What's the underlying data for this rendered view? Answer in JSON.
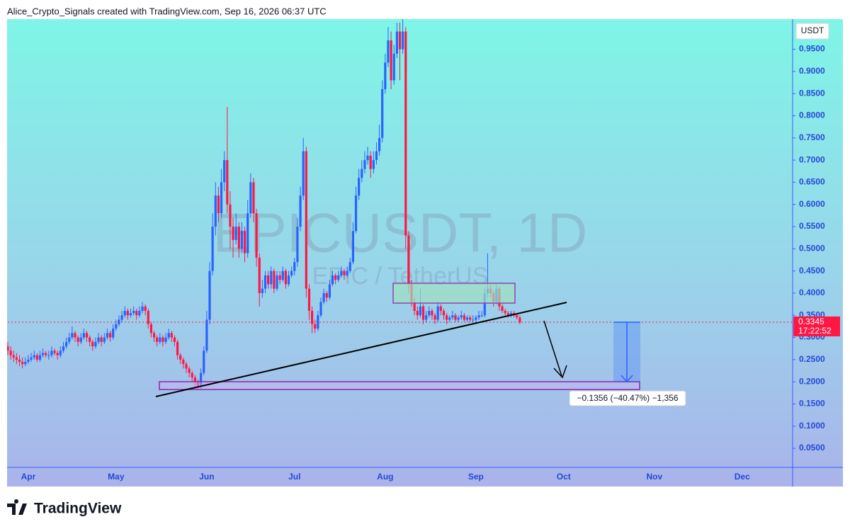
{
  "header": {
    "credit": "Alice_Crypto_Signals created with TradingView.com, Sep 16, 2026 06:37 UTC"
  },
  "footer": {
    "logo": "TradingView"
  },
  "chart_data": {
    "type": "candlestick",
    "watermark": "EPICUSDT, 1D",
    "subtitle": "EPIC / TetherUS",
    "currency": "USDT",
    "up_color": "#2962ff",
    "down_color": "#ff1744",
    "last_price": {
      "value": 0.3345,
      "label": "0.3345"
    },
    "countdown": "17:22:52",
    "measure_label": "−0.1356 (−40.47%) −1,356",
    "ylim": [
      0.007,
      1.018
    ],
    "yticks": [
      {
        "value": 0.05,
        "label": "0.0500"
      },
      {
        "value": 0.1,
        "label": "0.1000"
      },
      {
        "value": 0.15,
        "label": "0.1500"
      },
      {
        "value": 0.2,
        "label": "0.2000"
      },
      {
        "value": 0.25,
        "label": "0.2500"
      },
      {
        "value": 0.3,
        "label": "0.3000"
      },
      {
        "value": 0.35,
        "label": "0.3500"
      },
      {
        "value": 0.4,
        "label": "0.4000"
      },
      {
        "value": 0.45,
        "label": "0.4500"
      },
      {
        "value": 0.5,
        "label": "0.5000"
      },
      {
        "value": 0.55,
        "label": "0.5500"
      },
      {
        "value": 0.6,
        "label": "0.6000"
      },
      {
        "value": 0.65,
        "label": "0.6500"
      },
      {
        "value": 0.7,
        "label": "0.7000"
      },
      {
        "value": 0.75,
        "label": "0.7500"
      },
      {
        "value": 0.8,
        "label": "0.8000"
      },
      {
        "value": 0.85,
        "label": "0.8500"
      },
      {
        "value": 0.9,
        "label": "0.9000"
      },
      {
        "value": 0.95,
        "label": "0.9500"
      }
    ],
    "categories": [
      null,
      null,
      null,
      null,
      null,
      null,
      null,
      "Apr",
      null,
      null,
      null,
      null,
      null,
      null,
      null,
      null,
      null,
      null,
      null,
      null,
      null,
      null,
      null,
      null,
      null,
      null,
      null,
      null,
      null,
      null,
      null,
      null,
      null,
      null,
      null,
      null,
      null,
      "May",
      null,
      null,
      null,
      null,
      null,
      null,
      null,
      null,
      null,
      null,
      null,
      null,
      null,
      null,
      null,
      null,
      null,
      null,
      null,
      null,
      null,
      null,
      null,
      null,
      null,
      null,
      null,
      null,
      null,
      null,
      "Jun",
      null,
      null,
      null,
      null,
      null,
      null,
      null,
      null,
      null,
      null,
      null,
      null,
      null,
      null,
      null,
      null,
      null,
      null,
      null,
      null,
      null,
      null,
      null,
      null,
      null,
      null,
      null,
      null,
      null,
      "Jul",
      null,
      null,
      null,
      null,
      null,
      null,
      null,
      null,
      null,
      null,
      null,
      null,
      null,
      null,
      null,
      null,
      null,
      null,
      null,
      null,
      null,
      null,
      null,
      null,
      null,
      null,
      null,
      null,
      null,
      null,
      "Aug",
      null,
      null,
      null,
      null,
      null,
      null,
      null,
      null,
      null,
      null,
      null,
      null,
      null,
      null,
      null,
      null,
      null,
      null,
      null,
      null,
      null,
      null,
      null,
      null,
      null,
      null,
      null,
      null,
      null,
      null,
      "Sep",
      null,
      null,
      null,
      null,
      null,
      null,
      null,
      null,
      null,
      null,
      null,
      null,
      null,
      null,
      null,
      null,
      null,
      null,
      null,
      null,
      null,
      null,
      null,
      null,
      null,
      null,
      null,
      null,
      null,
      "Oct",
      null,
      null,
      null,
      null,
      null,
      null,
      null,
      null,
      null,
      null,
      null,
      null,
      null,
      null,
      null,
      null,
      null,
      null,
      null,
      null,
      null,
      null,
      null,
      null,
      null,
      null,
      null,
      null,
      null,
      null,
      "Nov",
      null,
      null,
      null,
      null,
      null,
      null,
      null,
      null,
      null,
      null,
      null,
      null,
      null,
      null,
      null,
      null,
      null,
      null,
      null,
      null,
      null,
      null,
      null,
      null,
      null,
      null,
      null,
      null,
      null,
      "Dec",
      null,
      null,
      null,
      null,
      null,
      null,
      null,
      null,
      null,
      null,
      null,
      null,
      null,
      null,
      null,
      null,
      null
    ],
    "ohlc": [
      [
        0.28,
        0.29,
        0.26,
        0.27
      ],
      [
        0.27,
        0.28,
        0.25,
        0.26
      ],
      [
        0.26,
        0.27,
        0.245,
        0.255
      ],
      [
        0.255,
        0.265,
        0.24,
        0.25
      ],
      [
        0.25,
        0.26,
        0.235,
        0.245
      ],
      [
        0.245,
        0.255,
        0.23,
        0.24
      ],
      [
        0.24,
        0.255,
        0.235,
        0.245
      ],
      [
        0.245,
        0.26,
        0.24,
        0.25
      ],
      [
        0.25,
        0.265,
        0.245,
        0.255
      ],
      [
        0.255,
        0.27,
        0.25,
        0.26
      ],
      [
        0.26,
        0.265,
        0.245,
        0.25
      ],
      [
        0.25,
        0.27,
        0.245,
        0.26
      ],
      [
        0.26,
        0.275,
        0.255,
        0.265
      ],
      [
        0.265,
        0.27,
        0.255,
        0.26
      ],
      [
        0.26,
        0.27,
        0.25,
        0.26
      ],
      [
        0.26,
        0.28,
        0.255,
        0.27
      ],
      [
        0.27,
        0.275,
        0.26,
        0.265
      ],
      [
        0.265,
        0.27,
        0.25,
        0.26
      ],
      [
        0.26,
        0.28,
        0.255,
        0.27
      ],
      [
        0.27,
        0.29,
        0.265,
        0.28
      ],
      [
        0.28,
        0.3,
        0.275,
        0.29
      ],
      [
        0.29,
        0.31,
        0.285,
        0.3
      ],
      [
        0.3,
        0.325,
        0.295,
        0.31
      ],
      [
        0.31,
        0.315,
        0.29,
        0.3
      ],
      [
        0.3,
        0.305,
        0.28,
        0.29
      ],
      [
        0.29,
        0.31,
        0.285,
        0.3
      ],
      [
        0.3,
        0.32,
        0.295,
        0.31
      ],
      [
        0.31,
        0.315,
        0.29,
        0.3
      ],
      [
        0.3,
        0.305,
        0.28,
        0.29
      ],
      [
        0.29,
        0.295,
        0.27,
        0.28
      ],
      [
        0.28,
        0.3,
        0.275,
        0.29
      ],
      [
        0.29,
        0.31,
        0.285,
        0.3
      ],
      [
        0.3,
        0.305,
        0.28,
        0.29
      ],
      [
        0.29,
        0.31,
        0.285,
        0.3
      ],
      [
        0.3,
        0.32,
        0.295,
        0.31
      ],
      [
        0.31,
        0.315,
        0.29,
        0.3
      ],
      [
        0.3,
        0.33,
        0.295,
        0.32
      ],
      [
        0.32,
        0.34,
        0.315,
        0.33
      ],
      [
        0.33,
        0.35,
        0.325,
        0.34
      ],
      [
        0.34,
        0.36,
        0.335,
        0.35
      ],
      [
        0.35,
        0.37,
        0.345,
        0.36
      ],
      [
        0.36,
        0.365,
        0.34,
        0.35
      ],
      [
        0.35,
        0.365,
        0.345,
        0.355
      ],
      [
        0.355,
        0.37,
        0.35,
        0.36
      ],
      [
        0.36,
        0.365,
        0.34,
        0.35
      ],
      [
        0.35,
        0.37,
        0.345,
        0.36
      ],
      [
        0.36,
        0.38,
        0.355,
        0.37
      ],
      [
        0.37,
        0.375,
        0.35,
        0.36
      ],
      [
        0.36,
        0.365,
        0.32,
        0.33
      ],
      [
        0.33,
        0.335,
        0.3,
        0.31
      ],
      [
        0.31,
        0.315,
        0.29,
        0.3
      ],
      [
        0.3,
        0.305,
        0.28,
        0.29
      ],
      [
        0.29,
        0.31,
        0.285,
        0.3
      ],
      [
        0.3,
        0.305,
        0.28,
        0.29
      ],
      [
        0.29,
        0.31,
        0.285,
        0.3
      ],
      [
        0.3,
        0.32,
        0.295,
        0.31
      ],
      [
        0.31,
        0.315,
        0.29,
        0.3
      ],
      [
        0.3,
        0.305,
        0.28,
        0.29
      ],
      [
        0.29,
        0.295,
        0.25,
        0.26
      ],
      [
        0.26,
        0.265,
        0.24,
        0.25
      ],
      [
        0.25,
        0.255,
        0.23,
        0.24
      ],
      [
        0.24,
        0.245,
        0.22,
        0.23
      ],
      [
        0.23,
        0.235,
        0.21,
        0.22
      ],
      [
        0.22,
        0.225,
        0.2,
        0.21
      ],
      [
        0.21,
        0.215,
        0.19,
        0.2
      ],
      [
        0.2,
        0.205,
        0.185,
        0.19
      ],
      [
        0.19,
        0.23,
        0.185,
        0.22
      ],
      [
        0.22,
        0.28,
        0.215,
        0.27
      ],
      [
        0.27,
        0.36,
        0.265,
        0.34
      ],
      [
        0.34,
        0.47,
        0.33,
        0.45
      ],
      [
        0.45,
        0.58,
        0.44,
        0.55
      ],
      [
        0.55,
        0.65,
        0.53,
        0.62
      ],
      [
        0.62,
        0.64,
        0.56,
        0.58
      ],
      [
        0.58,
        0.68,
        0.57,
        0.65
      ],
      [
        0.65,
        0.72,
        0.63,
        0.7
      ],
      [
        0.7,
        0.82,
        0.58,
        0.6
      ],
      [
        0.6,
        0.63,
        0.5,
        0.55
      ],
      [
        0.55,
        0.57,
        0.48,
        0.52
      ],
      [
        0.52,
        0.58,
        0.51,
        0.55
      ],
      [
        0.55,
        0.56,
        0.48,
        0.5
      ],
      [
        0.5,
        0.56,
        0.49,
        0.54
      ],
      [
        0.54,
        0.55,
        0.47,
        0.49
      ],
      [
        0.49,
        0.61,
        0.48,
        0.58
      ],
      [
        0.58,
        0.67,
        0.57,
        0.65
      ],
      [
        0.65,
        0.66,
        0.56,
        0.58
      ],
      [
        0.58,
        0.59,
        0.46,
        0.48
      ],
      [
        0.48,
        0.49,
        0.37,
        0.4
      ],
      [
        0.4,
        0.43,
        0.39,
        0.41
      ],
      [
        0.41,
        0.45,
        0.4,
        0.44
      ],
      [
        0.44,
        0.45,
        0.41,
        0.42
      ],
      [
        0.42,
        0.46,
        0.41,
        0.45
      ],
      [
        0.45,
        0.455,
        0.4,
        0.41
      ],
      [
        0.41,
        0.45,
        0.405,
        0.44
      ],
      [
        0.44,
        0.45,
        0.42,
        0.43
      ],
      [
        0.43,
        0.46,
        0.425,
        0.45
      ],
      [
        0.45,
        0.455,
        0.41,
        0.42
      ],
      [
        0.42,
        0.45,
        0.415,
        0.44
      ],
      [
        0.44,
        0.46,
        0.435,
        0.45
      ],
      [
        0.45,
        0.48,
        0.44,
        0.47
      ],
      [
        0.47,
        0.57,
        0.46,
        0.55
      ],
      [
        0.55,
        0.64,
        0.54,
        0.62
      ],
      [
        0.62,
        0.75,
        0.61,
        0.72
      ],
      [
        0.72,
        0.73,
        0.39,
        0.41
      ],
      [
        0.41,
        0.42,
        0.34,
        0.36
      ],
      [
        0.36,
        0.37,
        0.31,
        0.33
      ],
      [
        0.33,
        0.34,
        0.31,
        0.32
      ],
      [
        0.32,
        0.36,
        0.315,
        0.35
      ],
      [
        0.35,
        0.39,
        0.345,
        0.38
      ],
      [
        0.38,
        0.41,
        0.375,
        0.4
      ],
      [
        0.4,
        0.405,
        0.38,
        0.39
      ],
      [
        0.39,
        0.43,
        0.385,
        0.42
      ],
      [
        0.42,
        0.45,
        0.415,
        0.44
      ],
      [
        0.44,
        0.445,
        0.42,
        0.43
      ],
      [
        0.43,
        0.45,
        0.425,
        0.44
      ],
      [
        0.44,
        0.46,
        0.435,
        0.45
      ],
      [
        0.45,
        0.455,
        0.43,
        0.44
      ],
      [
        0.44,
        0.46,
        0.435,
        0.45
      ],
      [
        0.45,
        0.48,
        0.445,
        0.47
      ],
      [
        0.47,
        0.56,
        0.465,
        0.54
      ],
      [
        0.54,
        0.64,
        0.535,
        0.62
      ],
      [
        0.62,
        0.68,
        0.61,
        0.66
      ],
      [
        0.66,
        0.7,
        0.65,
        0.68
      ],
      [
        0.68,
        0.72,
        0.67,
        0.7
      ],
      [
        0.7,
        0.73,
        0.69,
        0.71
      ],
      [
        0.71,
        0.72,
        0.66,
        0.68
      ],
      [
        0.68,
        0.72,
        0.67,
        0.7
      ],
      [
        0.7,
        0.74,
        0.69,
        0.72
      ],
      [
        0.72,
        0.78,
        0.71,
        0.75
      ],
      [
        0.75,
        0.88,
        0.74,
        0.86
      ],
      [
        0.86,
        0.94,
        0.85,
        0.92
      ],
      [
        0.92,
        1.0,
        0.91,
        0.97
      ],
      [
        0.97,
        0.99,
        0.86,
        0.88
      ],
      [
        0.88,
        0.96,
        0.87,
        0.94
      ],
      [
        0.94,
        1.01,
        0.93,
        0.99
      ],
      [
        0.99,
        1.01,
        0.88,
        0.95
      ],
      [
        0.95,
        1.02,
        0.94,
        0.99
      ],
      [
        0.99,
        1.0,
        0.5,
        0.53
      ],
      [
        0.53,
        0.54,
        0.4,
        0.42
      ],
      [
        0.42,
        0.43,
        0.37,
        0.38
      ],
      [
        0.38,
        0.39,
        0.35,
        0.36
      ],
      [
        0.36,
        0.37,
        0.34,
        0.35
      ],
      [
        0.35,
        0.41,
        0.345,
        0.37
      ],
      [
        0.37,
        0.375,
        0.33,
        0.34
      ],
      [
        0.34,
        0.36,
        0.335,
        0.35
      ],
      [
        0.35,
        0.37,
        0.345,
        0.36
      ],
      [
        0.36,
        0.365,
        0.34,
        0.35
      ],
      [
        0.35,
        0.355,
        0.33,
        0.34
      ],
      [
        0.34,
        0.38,
        0.335,
        0.37
      ],
      [
        0.37,
        0.375,
        0.35,
        0.36
      ],
      [
        0.36,
        0.365,
        0.34,
        0.35
      ],
      [
        0.35,
        0.355,
        0.33,
        0.34
      ],
      [
        0.34,
        0.35,
        0.335,
        0.345
      ],
      [
        0.345,
        0.36,
        0.34,
        0.35
      ],
      [
        0.35,
        0.355,
        0.335,
        0.34
      ],
      [
        0.34,
        0.35,
        0.335,
        0.345
      ],
      [
        0.345,
        0.36,
        0.34,
        0.35
      ],
      [
        0.35,
        0.355,
        0.335,
        0.34
      ],
      [
        0.34,
        0.35,
        0.335,
        0.345
      ],
      [
        0.345,
        0.35,
        0.335,
        0.34
      ],
      [
        0.34,
        0.35,
        0.335,
        0.34
      ],
      [
        0.34,
        0.35,
        0.335,
        0.345
      ],
      [
        0.345,
        0.36,
        0.34,
        0.35
      ],
      [
        0.35,
        0.36,
        0.345,
        0.35
      ],
      [
        0.35,
        0.41,
        0.345,
        0.4
      ],
      [
        0.4,
        0.49,
        0.39,
        0.41
      ],
      [
        0.41,
        0.42,
        0.39,
        0.4
      ],
      [
        0.4,
        0.405,
        0.37,
        0.38
      ],
      [
        0.38,
        0.42,
        0.375,
        0.41
      ],
      [
        0.41,
        0.415,
        0.36,
        0.37
      ],
      [
        0.37,
        0.375,
        0.355,
        0.36
      ],
      [
        0.36,
        0.365,
        0.35,
        0.355
      ],
      [
        0.355,
        0.36,
        0.345,
        0.35
      ],
      [
        0.35,
        0.36,
        0.345,
        0.355
      ],
      [
        0.355,
        0.36,
        0.345,
        0.35
      ],
      [
        0.35,
        0.355,
        0.34,
        0.345
      ],
      [
        0.345,
        0.35,
        0.33,
        0.3345
      ],
      null,
      null,
      null,
      null,
      null,
      null,
      null,
      null,
      null,
      null,
      null,
      null,
      null,
      null,
      null,
      null,
      null,
      null,
      null,
      null,
      null,
      null,
      null,
      null,
      null,
      null,
      null,
      null,
      null,
      null,
      null,
      null,
      null,
      null,
      null,
      null,
      null,
      null,
      null,
      null,
      null,
      null,
      null,
      null,
      null,
      null,
      null,
      null,
      null,
      null,
      null,
      null,
      null,
      null,
      null,
      null,
      null,
      null,
      null,
      null,
      null,
      null,
      null,
      null,
      null,
      null,
      null,
      null,
      null,
      null,
      null,
      null,
      null,
      null,
      null,
      null,
      null,
      null,
      null,
      null,
      null,
      null,
      null,
      null,
      null,
      null,
      null,
      null,
      null,
      null,
      null,
      null,
      null
    ]
  }
}
